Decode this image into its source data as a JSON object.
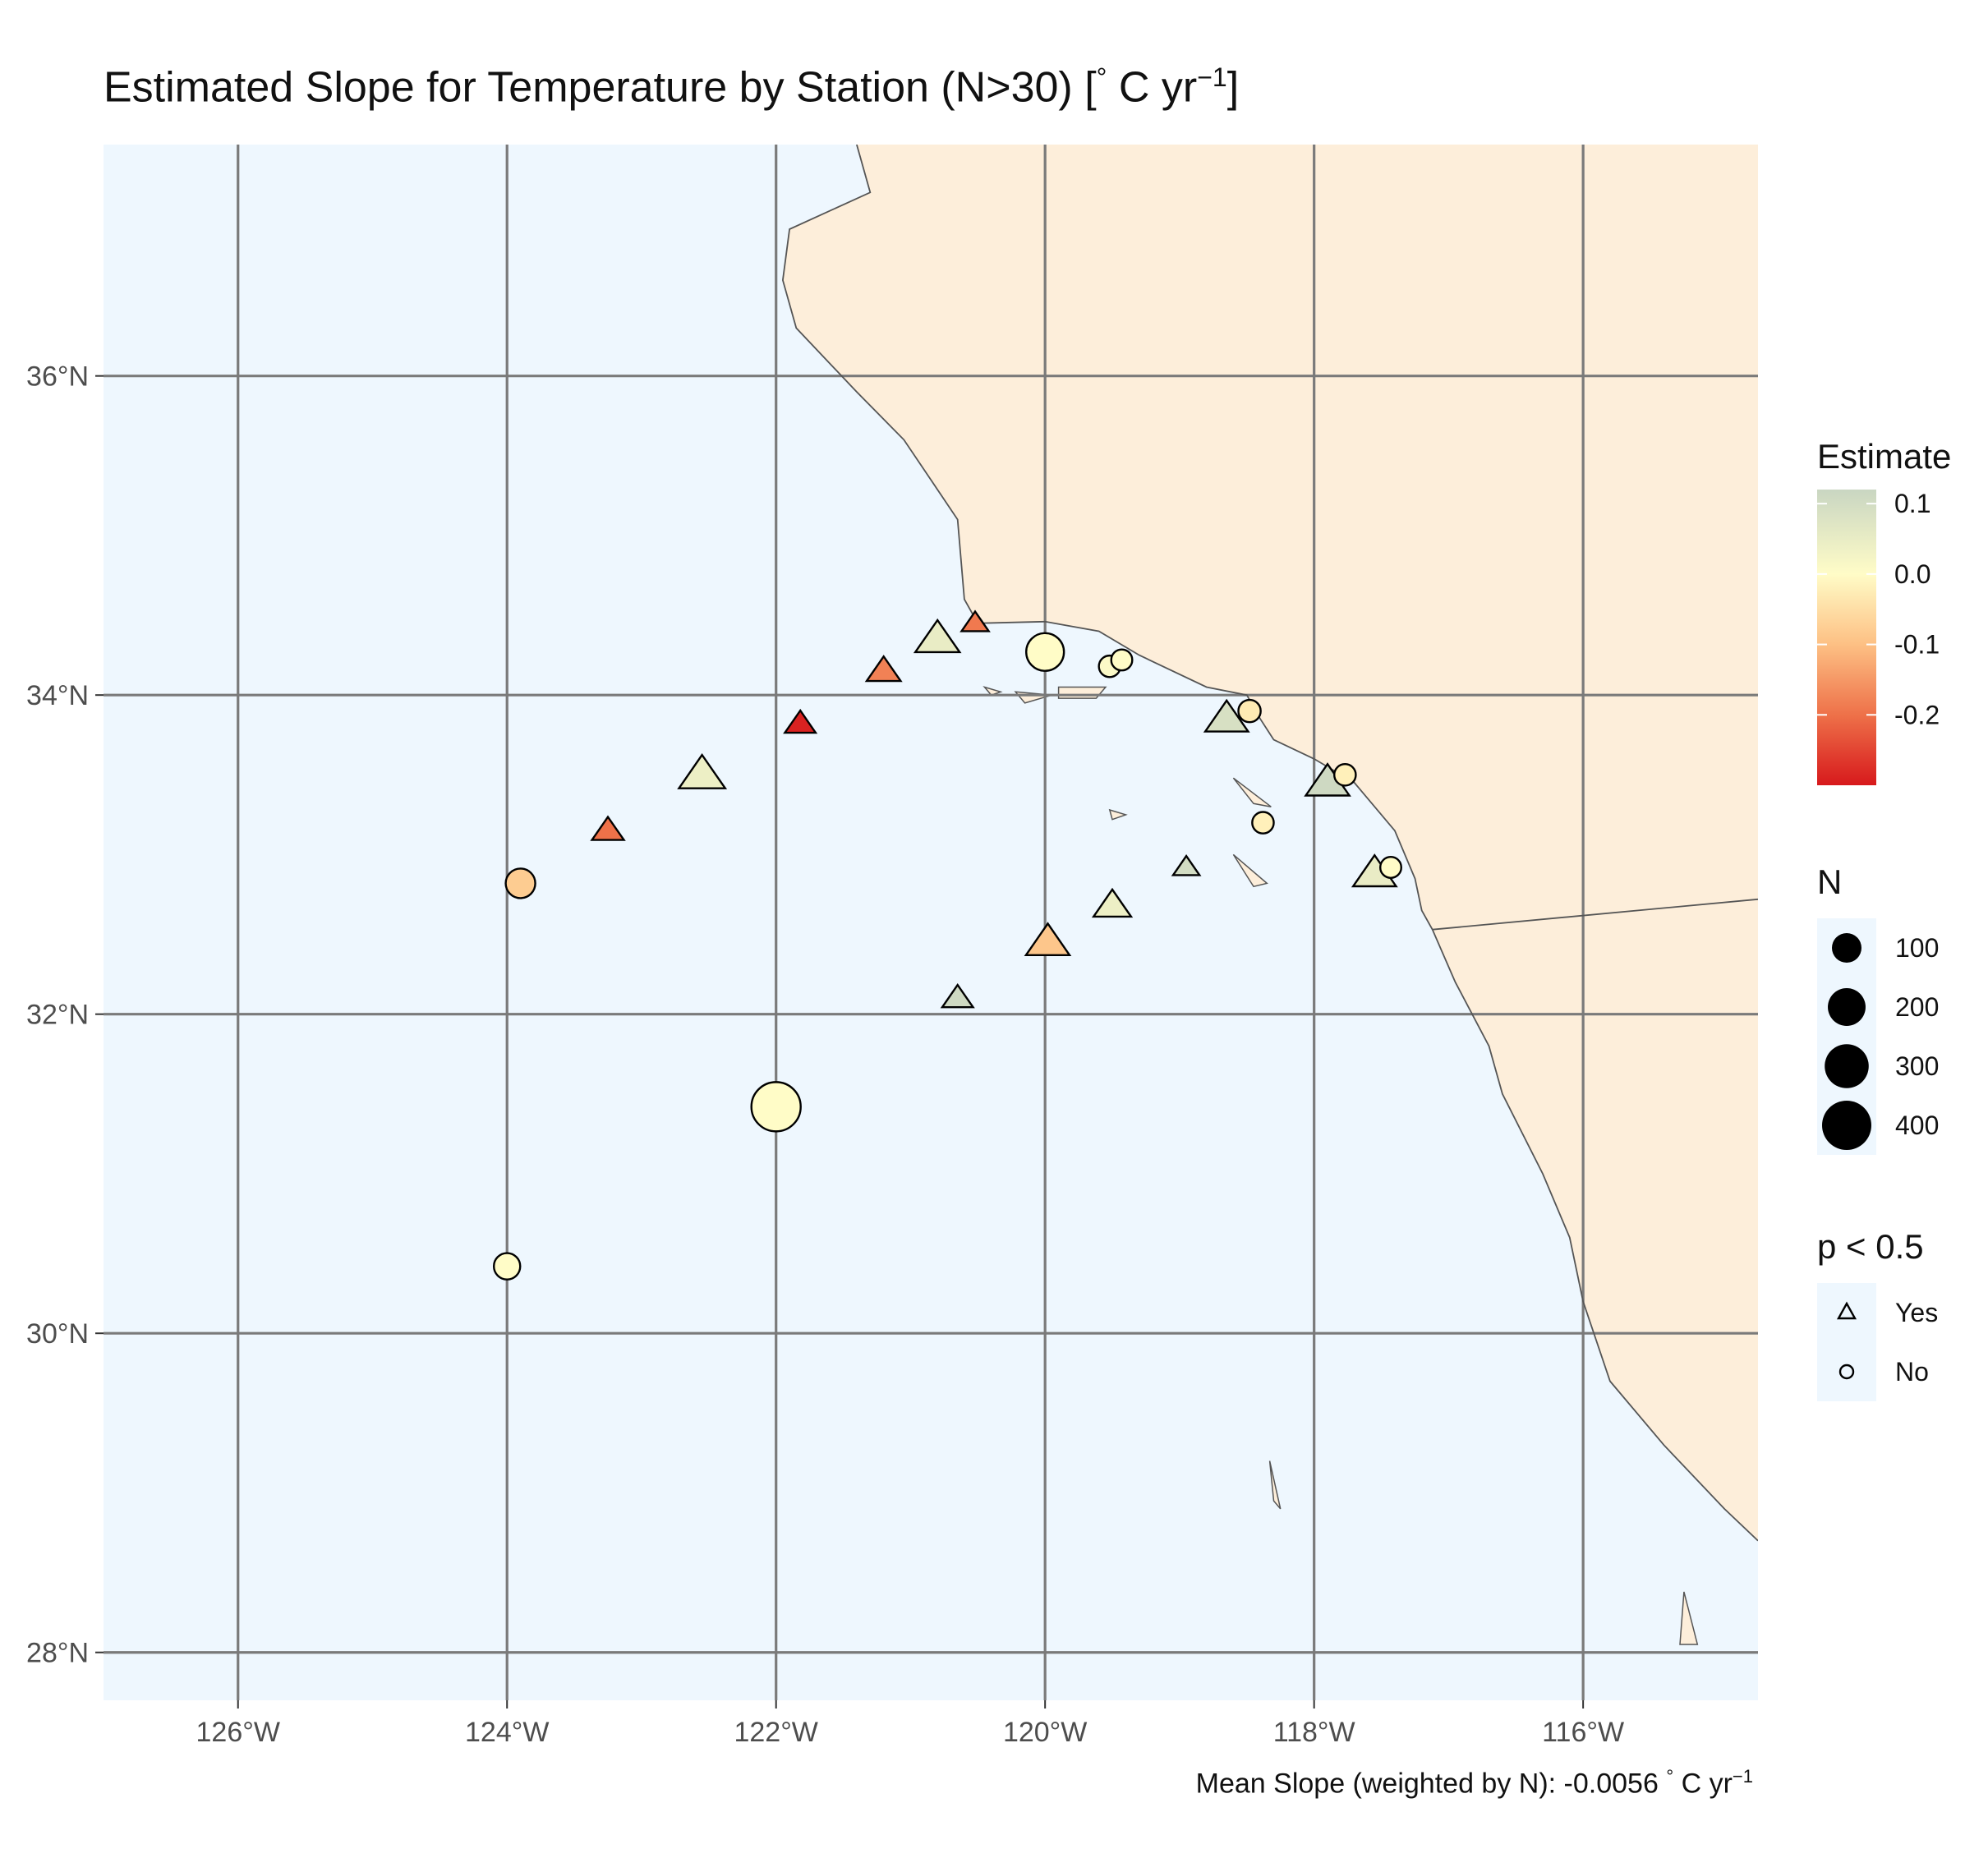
{
  "title": {
    "main": "Estimated Slope for Temperature by Station (N>30) [",
    "degree": "°",
    "unit": " C yr",
    "exponent": "−1",
    "close": "]"
  },
  "caption": {
    "text": "Mean Slope (weighted by N): -0.0056 ",
    "degree": "°",
    "unit": " C yr",
    "exponent": "−1"
  },
  "colors": {
    "ocean": "#eef7fe",
    "land": "#fdeeda",
    "coast": "#555555",
    "grid": "#7a7a7a"
  },
  "map": {
    "lon_range": [
      -127.0,
      -114.7
    ],
    "lat_range": [
      27.7,
      37.45
    ],
    "lon_breaks": [
      -126,
      -124,
      -122,
      -120,
      -118,
      -116
    ],
    "lat_breaks": [
      28,
      30,
      32,
      34,
      36
    ],
    "lon_labels": [
      "126°W",
      "124°W",
      "122°W",
      "120°W",
      "118°W",
      "116°W"
    ],
    "lat_labels": [
      "28°N",
      "30°N",
      "32°N",
      "34°N",
      "36°N"
    ],
    "coastline": [
      [
        -121.4,
        37.45
      ],
      [
        -121.3,
        37.15
      ],
      [
        -121.9,
        36.92
      ],
      [
        -121.95,
        36.6
      ],
      [
        -121.85,
        36.3
      ],
      [
        -121.4,
        35.9
      ],
      [
        -121.05,
        35.6
      ],
      [
        -120.85,
        35.35
      ],
      [
        -120.65,
        35.1
      ],
      [
        -120.6,
        34.6
      ],
      [
        -120.5,
        34.45
      ],
      [
        -120.0,
        34.46
      ],
      [
        -119.6,
        34.4
      ],
      [
        -119.3,
        34.25
      ],
      [
        -118.8,
        34.05
      ],
      [
        -118.5,
        34.0
      ],
      [
        -118.4,
        33.85
      ],
      [
        -118.3,
        33.72
      ],
      [
        -118.0,
        33.6
      ],
      [
        -117.7,
        33.45
      ],
      [
        -117.4,
        33.15
      ],
      [
        -117.25,
        32.85
      ],
      [
        -117.2,
        32.65
      ],
      [
        -117.12,
        32.53
      ],
      [
        -116.95,
        32.2
      ],
      [
        -116.7,
        31.8
      ],
      [
        -116.6,
        31.5
      ],
      [
        -116.3,
        31.0
      ],
      [
        -116.1,
        30.6
      ],
      [
        -116.0,
        30.2
      ],
      [
        -115.8,
        29.7
      ],
      [
        -115.4,
        29.3
      ],
      [
        -114.95,
        28.9
      ],
      [
        -114.7,
        28.7
      ]
    ],
    "border": [
      [
        -117.12,
        32.53
      ],
      [
        -114.7,
        32.72
      ]
    ],
    "islands": [
      [
        [
          -120.45,
          34.05
        ],
        [
          -120.33,
          34.02
        ],
        [
          -120.4,
          34.0
        ]
      ],
      [
        [
          -120.22,
          34.02
        ],
        [
          -119.95,
          34.0
        ],
        [
          -120.15,
          33.95
        ]
      ],
      [
        [
          -119.9,
          34.05
        ],
        [
          -119.55,
          34.05
        ],
        [
          -119.62,
          33.98
        ],
        [
          -119.9,
          33.98
        ]
      ],
      [
        [
          -119.52,
          33.28
        ],
        [
          -119.4,
          33.25
        ],
        [
          -119.5,
          33.22
        ]
      ],
      [
        [
          -118.6,
          33.48
        ],
        [
          -118.32,
          33.3
        ],
        [
          -118.45,
          33.32
        ]
      ],
      [
        [
          -118.6,
          33.0
        ],
        [
          -118.45,
          32.8
        ],
        [
          -118.35,
          32.82
        ]
      ],
      [
        [
          -118.33,
          29.2
        ],
        [
          -118.25,
          28.9
        ],
        [
          -118.3,
          28.95
        ]
      ],
      [
        [
          -115.25,
          28.38
        ],
        [
          -115.15,
          28.05
        ],
        [
          -115.28,
          28.05
        ]
      ]
    ]
  },
  "chart_data": {
    "type": "scatter",
    "x_unit": "longitude",
    "y_unit": "latitude",
    "color_scale": {
      "title": "Estimate",
      "domain": [
        -0.3,
        0.12
      ],
      "ticks": [
        0.1,
        0.0,
        -0.1,
        -0.2
      ],
      "tick_labels": [
        "0.1",
        "0.0",
        "-0.1",
        "-0.2"
      ],
      "stops": [
        {
          "value": -0.3,
          "color": "#d7191c"
        },
        {
          "value": -0.2,
          "color": "#ee7149"
        },
        {
          "value": -0.1,
          "color": "#fdc084"
        },
        {
          "value": 0.0,
          "color": "#fffcc7"
        },
        {
          "value": 0.12,
          "color": "#c9d6c2"
        }
      ]
    },
    "size_legend": {
      "title": "N",
      "values": [
        100,
        200,
        300,
        400
      ],
      "labels": [
        "100",
        "200",
        "300",
        "400"
      ]
    },
    "shape_legend": {
      "title": "p < 0.5",
      "items": [
        {
          "label": "Yes",
          "shape": "triangle"
        },
        {
          "label": "No",
          "shape": "circle"
        }
      ]
    },
    "points": [
      {
        "lon": -120.52,
        "lat": 34.45,
        "estimate": -0.19,
        "n": 60,
        "sig": "Yes"
      },
      {
        "lon": -120.8,
        "lat": 34.35,
        "estimate": 0.05,
        "n": 250,
        "sig": "Yes"
      },
      {
        "lon": -121.2,
        "lat": 34.15,
        "estimate": -0.18,
        "n": 120,
        "sig": "Yes"
      },
      {
        "lon": -120.0,
        "lat": 34.27,
        "estimate": 0.0,
        "n": 200,
        "sig": "No"
      },
      {
        "lon": -119.52,
        "lat": 34.18,
        "estimate": 0.01,
        "n": 35,
        "sig": "No"
      },
      {
        "lon": -119.43,
        "lat": 34.22,
        "estimate": 0.0,
        "n": 32,
        "sig": "No"
      },
      {
        "lon": -121.82,
        "lat": 33.82,
        "estimate": -0.29,
        "n": 90,
        "sig": "Yes"
      },
      {
        "lon": -122.55,
        "lat": 33.5,
        "estimate": 0.04,
        "n": 280,
        "sig": "Yes"
      },
      {
        "lon": -123.25,
        "lat": 33.15,
        "estimate": -0.2,
        "n": 100,
        "sig": "Yes"
      },
      {
        "lon": -123.9,
        "lat": 32.82,
        "estimate": -0.08,
        "n": 100,
        "sig": "No"
      },
      {
        "lon": -118.65,
        "lat": 33.85,
        "estimate": 0.09,
        "n": 230,
        "sig": "Yes"
      },
      {
        "lon": -118.48,
        "lat": 33.9,
        "estimate": -0.03,
        "n": 40,
        "sig": "No"
      },
      {
        "lon": -117.9,
        "lat": 33.45,
        "estimate": 0.11,
        "n": 240,
        "sig": "Yes"
      },
      {
        "lon": -117.77,
        "lat": 33.5,
        "estimate": -0.02,
        "n": 35,
        "sig": "No"
      },
      {
        "lon": -118.38,
        "lat": 33.2,
        "estimate": -0.02,
        "n": 35,
        "sig": "No"
      },
      {
        "lon": -118.95,
        "lat": 32.92,
        "estimate": 0.1,
        "n": 55,
        "sig": "Yes"
      },
      {
        "lon": -119.5,
        "lat": 32.68,
        "estimate": 0.04,
        "n": 160,
        "sig": "Yes"
      },
      {
        "lon": -117.55,
        "lat": 32.88,
        "estimate": 0.05,
        "n": 230,
        "sig": "Yes"
      },
      {
        "lon": -117.43,
        "lat": 32.92,
        "estimate": 0.0,
        "n": 32,
        "sig": "No"
      },
      {
        "lon": -119.98,
        "lat": 32.45,
        "estimate": -0.09,
        "n": 240,
        "sig": "Yes"
      },
      {
        "lon": -120.65,
        "lat": 32.1,
        "estimate": 0.11,
        "n": 90,
        "sig": "Yes"
      },
      {
        "lon": -122.0,
        "lat": 31.42,
        "estimate": 0.0,
        "n": 400,
        "sig": "No"
      },
      {
        "lon": -124.0,
        "lat": 30.42,
        "estimate": 0.0,
        "n": 70,
        "sig": "No"
      }
    ]
  }
}
